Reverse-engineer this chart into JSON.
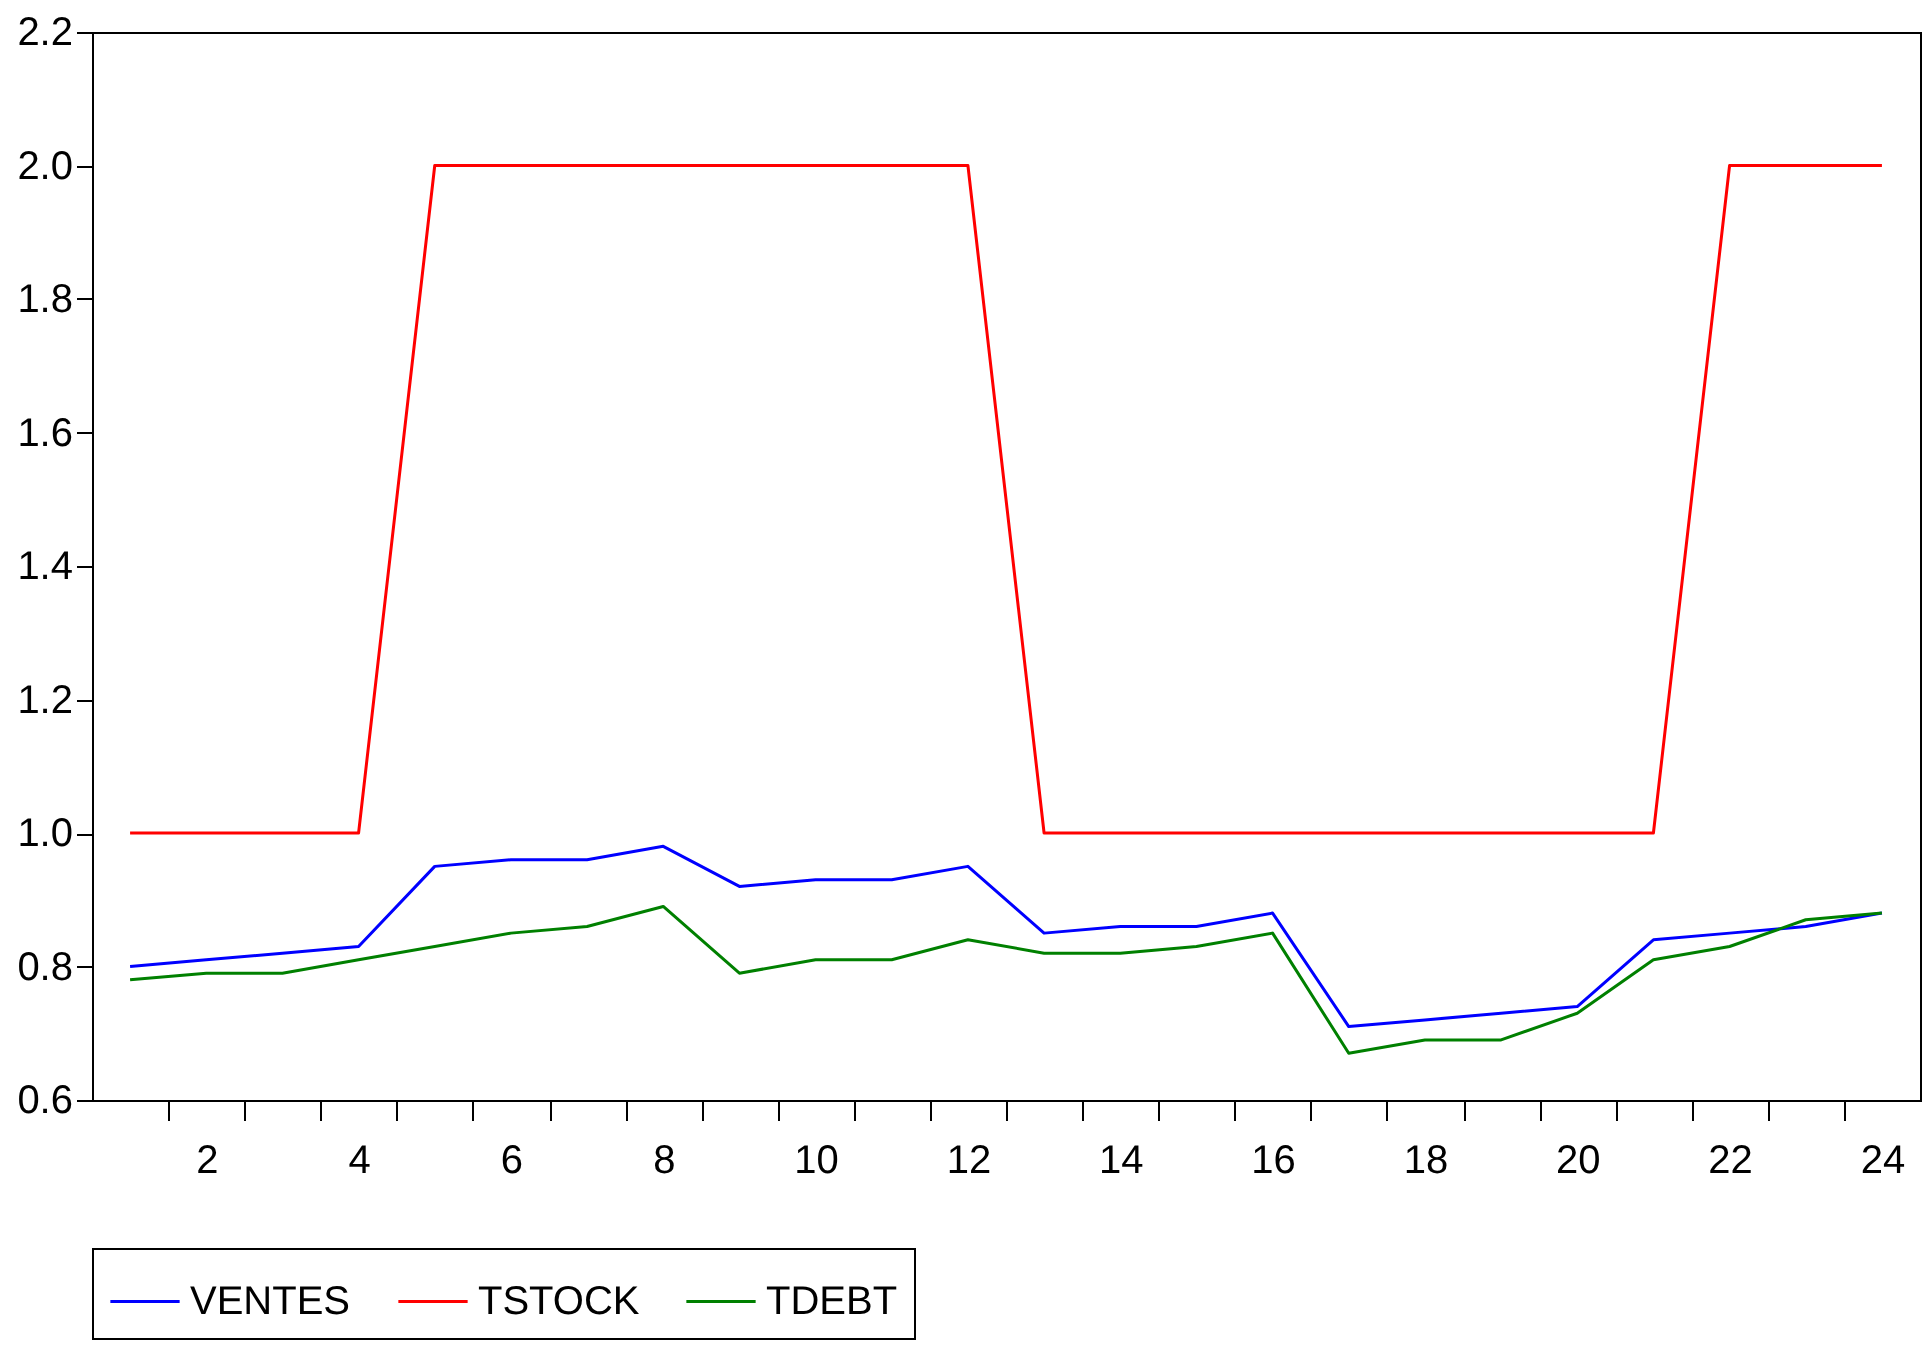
{
  "chart_data": {
    "type": "line",
    "x": [
      1,
      2,
      3,
      4,
      5,
      6,
      7,
      8,
      9,
      10,
      11,
      12,
      13,
      14,
      15,
      16,
      17,
      18,
      19,
      20,
      21,
      22,
      23,
      24
    ],
    "series": [
      {
        "name": "VENTES",
        "color": "#0000ff",
        "values": [
          0.8,
          0.81,
          0.82,
          0.83,
          0.95,
          0.96,
          0.96,
          0.98,
          0.92,
          0.93,
          0.93,
          0.95,
          0.85,
          0.86,
          0.86,
          0.88,
          0.71,
          0.72,
          0.73,
          0.74,
          0.84,
          0.85,
          0.86,
          0.88
        ]
      },
      {
        "name": "TSTOCK",
        "color": "#ff0000",
        "values": [
          1,
          1,
          1,
          1,
          2,
          2,
          2,
          2,
          2,
          2,
          2,
          2,
          1,
          1,
          1,
          1,
          1,
          1,
          1,
          1,
          1,
          2,
          2,
          2
        ]
      },
      {
        "name": "TDEBT",
        "color": "#008000",
        "values": [
          0.78,
          0.79,
          0.79,
          0.81,
          0.83,
          0.85,
          0.86,
          0.89,
          0.79,
          0.81,
          0.81,
          0.84,
          0.82,
          0.82,
          0.83,
          0.85,
          0.67,
          0.69,
          0.69,
          0.73,
          0.81,
          0.83,
          0.87,
          0.88
        ]
      }
    ],
    "xlim": [
      0.5,
      24.5
    ],
    "xticks": [
      {
        "value": 1.5,
        "label": null
      },
      {
        "value": 2,
        "label": "2"
      },
      {
        "value": 2.5,
        "label": null
      },
      {
        "value": 3.5,
        "label": null
      },
      {
        "value": 4,
        "label": "4"
      },
      {
        "value": 4.5,
        "label": null
      },
      {
        "value": 5.5,
        "label": null
      },
      {
        "value": 6,
        "label": "6"
      },
      {
        "value": 6.5,
        "label": null
      },
      {
        "value": 7.5,
        "label": null
      },
      {
        "value": 8,
        "label": "8"
      },
      {
        "value": 8.5,
        "label": null
      },
      {
        "value": 9.5,
        "label": null
      },
      {
        "value": 10,
        "label": "10"
      },
      {
        "value": 10.5,
        "label": null
      },
      {
        "value": 11.5,
        "label": null
      },
      {
        "value": 12,
        "label": "12"
      },
      {
        "value": 12.5,
        "label": null
      },
      {
        "value": 13.5,
        "label": null
      },
      {
        "value": 14,
        "label": "14"
      },
      {
        "value": 14.5,
        "label": null
      },
      {
        "value": 15.5,
        "label": null
      },
      {
        "value": 16,
        "label": "16"
      },
      {
        "value": 16.5,
        "label": null
      },
      {
        "value": 17.5,
        "label": null
      },
      {
        "value": 18,
        "label": "18"
      },
      {
        "value": 18.5,
        "label": null
      },
      {
        "value": 19.5,
        "label": null
      },
      {
        "value": 20,
        "label": "20"
      },
      {
        "value": 20.5,
        "label": null
      },
      {
        "value": 21.5,
        "label": null
      },
      {
        "value": 22,
        "label": "22"
      },
      {
        "value": 22.5,
        "label": null
      },
      {
        "value": 23.5,
        "label": null
      },
      {
        "value": 24,
        "label": "24"
      }
    ],
    "ylim": [
      0.6,
      2.2
    ],
    "yticks": [
      {
        "value": 0.6,
        "label": "0.6"
      },
      {
        "value": 0.8,
        "label": "0.8"
      },
      {
        "value": 1.0,
        "label": "1.0"
      },
      {
        "value": 1.2,
        "label": "1.2"
      },
      {
        "value": 1.4,
        "label": "1.4"
      },
      {
        "value": 1.6,
        "label": "1.6"
      },
      {
        "value": 1.8,
        "label": "1.8"
      },
      {
        "value": 2.0,
        "label": "2.0"
      },
      {
        "value": 2.2,
        "label": "2.2"
      }
    ],
    "grid": false,
    "legend": "bottom",
    "marker": "none",
    "line_style": "solid"
  }
}
